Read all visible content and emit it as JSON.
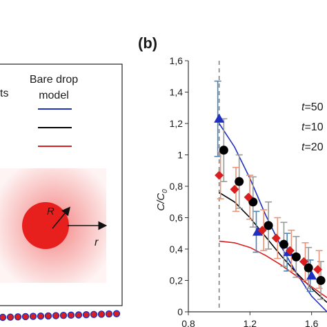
{
  "panel_a": {
    "legend_partial_left": "ts",
    "legend_title_line1": "Bare drop",
    "legend_title_line2": "model",
    "legend_line_colors": [
      "#1f2fbf",
      "#000000",
      "#d81e1e"
    ],
    "inset_radius_label": "R",
    "inset_radial_label": "r",
    "inset_color": "#e8201d"
  },
  "panel_b": {
    "label": "(b)",
    "time_labels": [
      {
        "prefix": "t",
        "rest": "=50",
        "color": "#1f2fbf"
      },
      {
        "prefix": "t",
        "rest": "=10",
        "color": "#000000"
      },
      {
        "prefix": "t",
        "rest": "=20",
        "color": "#d81e1e"
      }
    ]
  },
  "chart_data": {
    "type": "scatter",
    "xlabel": "",
    "ylabel": "C/C0",
    "ylabel_main": "C/C",
    "ylabel_sub": "0",
    "xlim": [
      0.8,
      1.7
    ],
    "ylim": [
      0,
      1.6
    ],
    "yticks": [
      "0",
      "0,2",
      "0,4",
      "0,6",
      "0,8",
      "1",
      "1,2",
      "1,4",
      "1,6"
    ],
    "xticks": [
      "0,8",
      "1,2",
      "1,6"
    ],
    "reference_line_x": 1.0,
    "series": [
      {
        "name": "t=50",
        "color": "#1f2fbf",
        "marker": "triangle",
        "x": [
          1.0,
          1.25,
          1.45,
          1.6
        ],
        "y": [
          1.23,
          0.51,
          0.38,
          0.23
        ],
        "err": [
          0.24,
          0.13,
          0.12,
          0.1
        ],
        "curve_x": [
          1.0,
          1.1,
          1.2,
          1.3,
          1.4,
          1.5,
          1.6,
          1.7
        ],
        "curve_y": [
          1.2,
          1.05,
          0.85,
          0.62,
          0.42,
          0.25,
          0.1,
          0.0
        ]
      },
      {
        "name": "t=10",
        "color": "#000000",
        "marker": "circle",
        "x": [
          1.03,
          1.13,
          1.22,
          1.32,
          1.42,
          1.5,
          1.58,
          1.66
        ],
        "y": [
          1.03,
          0.83,
          0.7,
          0.55,
          0.43,
          0.35,
          0.28,
          0.2
        ],
        "err": [
          0.2,
          0.17,
          0.16,
          0.15,
          0.14,
          0.13,
          0.13,
          0.12
        ],
        "curve_x": [
          1.0,
          1.1,
          1.2,
          1.3,
          1.4,
          1.5,
          1.6,
          1.7
        ],
        "curve_y": [
          0.76,
          0.7,
          0.6,
          0.48,
          0.36,
          0.25,
          0.15,
          0.06
        ]
      },
      {
        "name": "t=20",
        "color": "#d81e1e",
        "marker": "diamond",
        "x": [
          1.0,
          1.1,
          1.19,
          1.28,
          1.37,
          1.46,
          1.55,
          1.64
        ],
        "y": [
          0.87,
          0.78,
          0.73,
          0.52,
          0.47,
          0.39,
          0.32,
          0.27
        ],
        "err": [
          0.15,
          0.14,
          0.14,
          0.13,
          0.13,
          0.13,
          0.12,
          0.12
        ],
        "curve_x": [
          1.0,
          1.1,
          1.2,
          1.3,
          1.4,
          1.5,
          1.6,
          1.7
        ],
        "curve_y": [
          0.45,
          0.44,
          0.41,
          0.36,
          0.3,
          0.23,
          0.16,
          0.09
        ]
      }
    ]
  }
}
